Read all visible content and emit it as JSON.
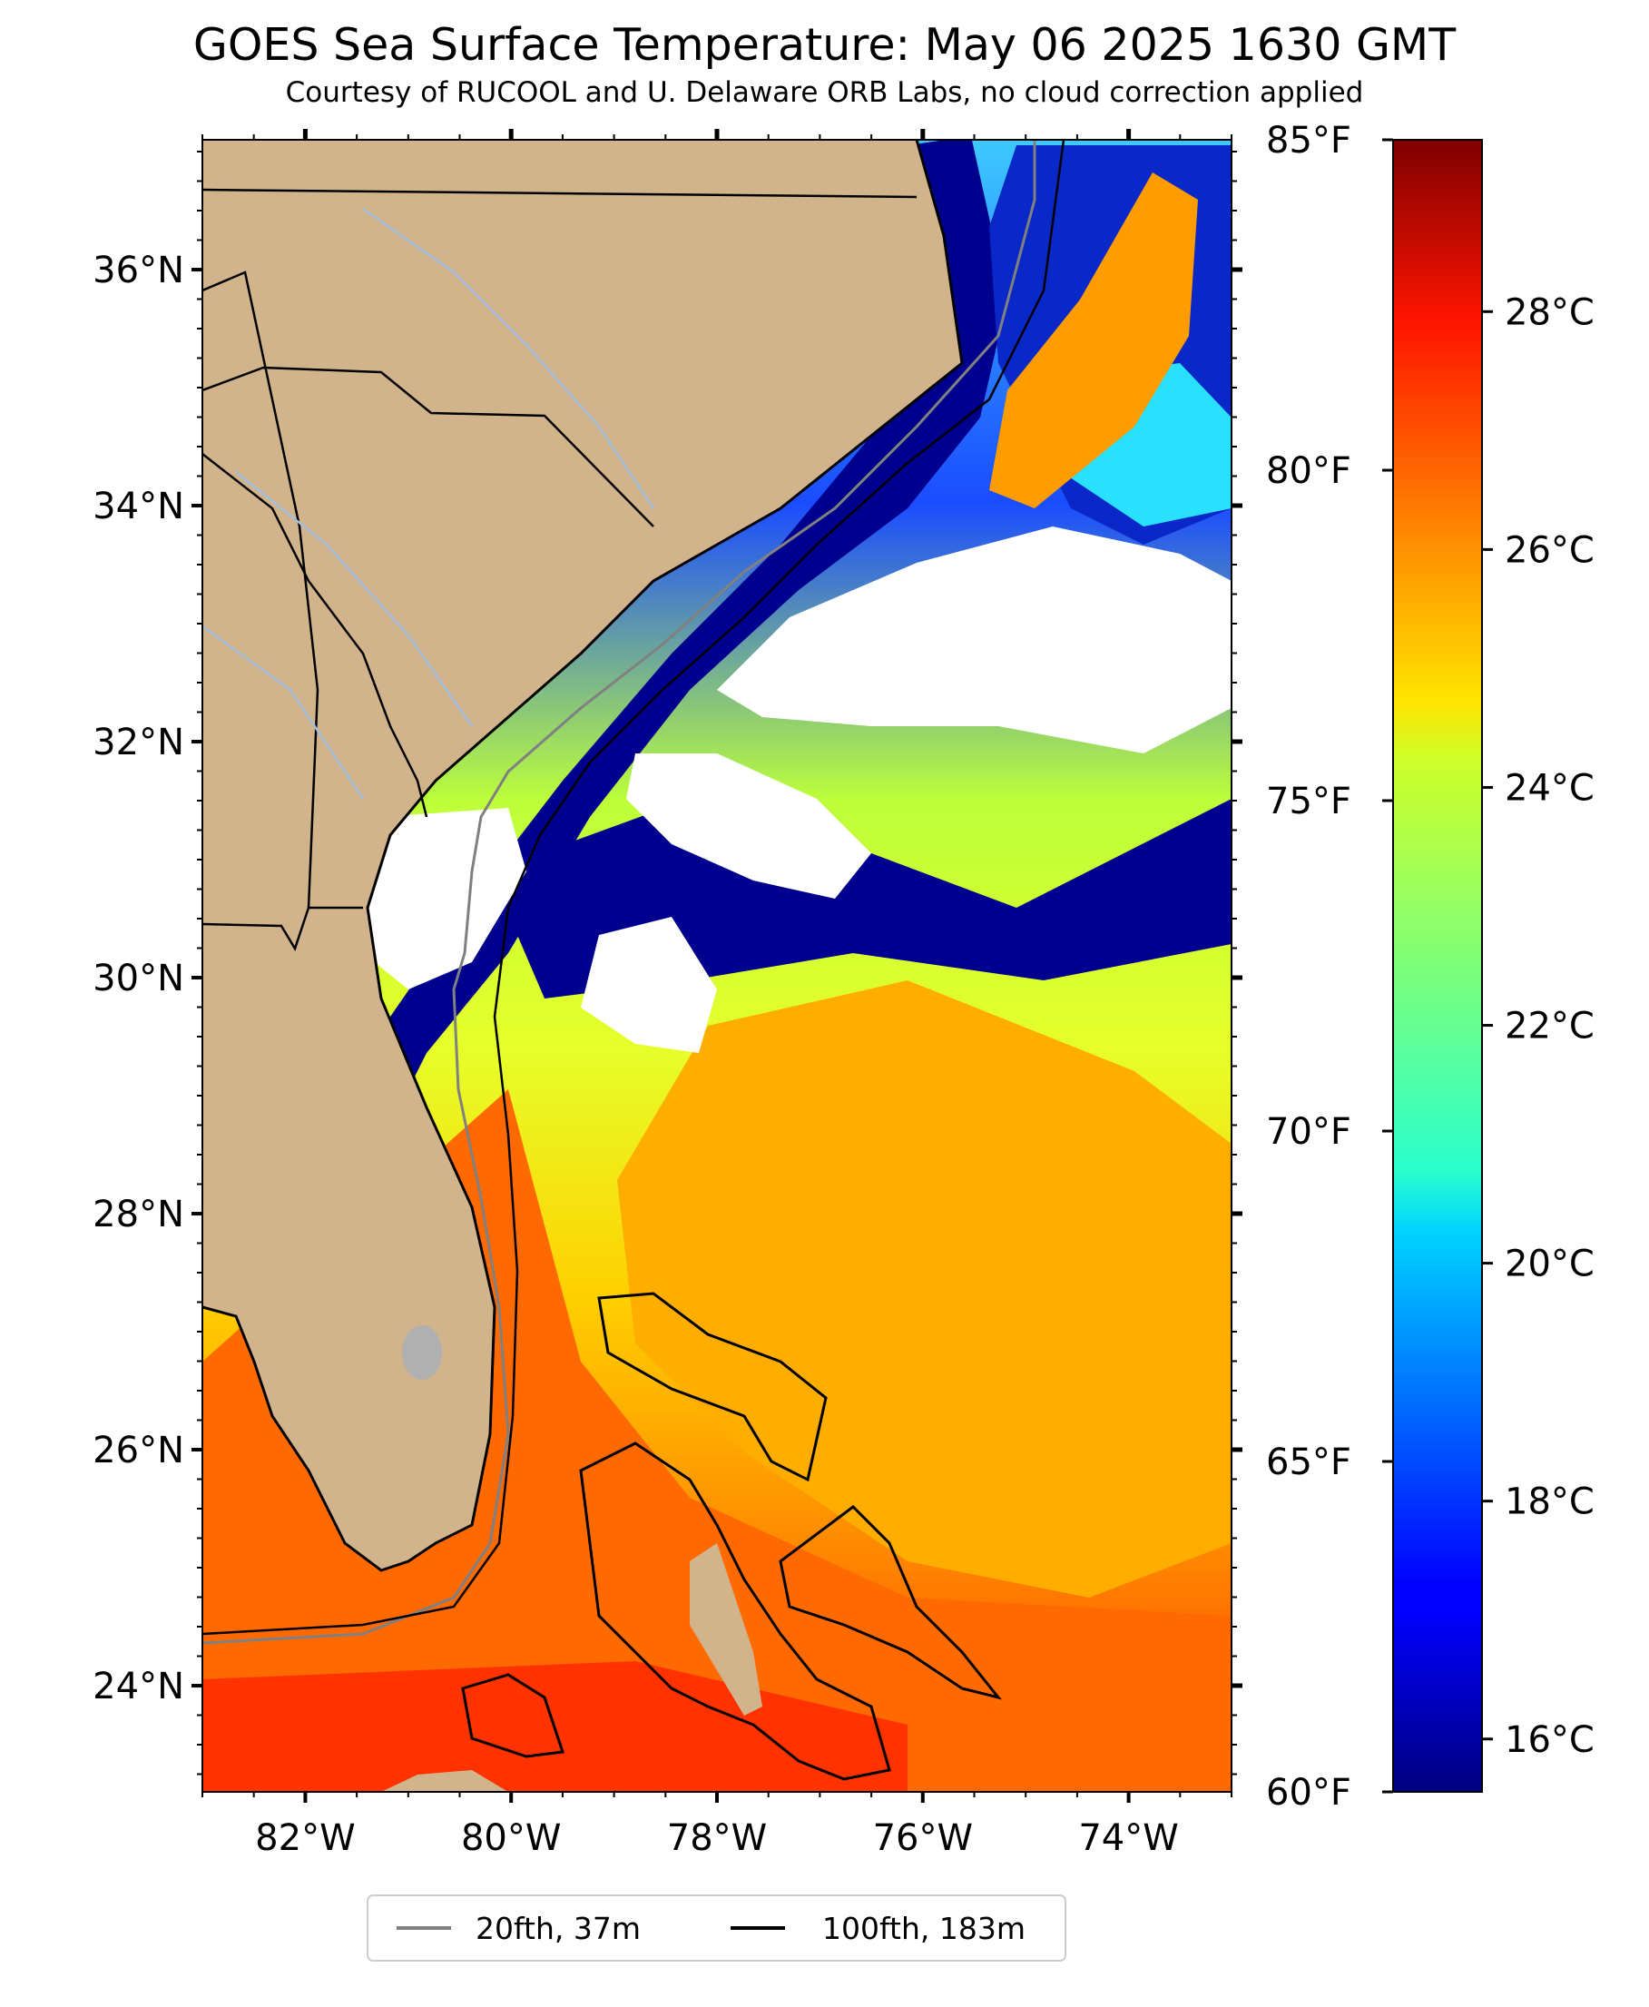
{
  "title": "GOES Sea Surface Temperature: May 06 2025 1630 GMT",
  "subtitle": "Courtesy of RUCOOL and U. Delaware ORB Labs, no cloud correction applied",
  "map": {
    "lat_range": [
      23.1,
      37.1
    ],
    "lon_range": [
      -83.0,
      -73.0
    ],
    "lat_ticks": [
      {
        "value": 24,
        "label": "24°N"
      },
      {
        "value": 26,
        "label": "26°N"
      },
      {
        "value": 28,
        "label": "28°N"
      },
      {
        "value": 30,
        "label": "30°N"
      },
      {
        "value": 32,
        "label": "32°N"
      },
      {
        "value": 34,
        "label": "34°N"
      },
      {
        "value": 36,
        "label": "36°N"
      }
    ],
    "lon_ticks": [
      {
        "value": -82,
        "label": "82°W"
      },
      {
        "value": -80,
        "label": "80°W"
      },
      {
        "value": -78,
        "label": "78°W"
      },
      {
        "value": -76,
        "label": "76°W"
      },
      {
        "value": -74,
        "label": "74°W"
      }
    ],
    "colors": {
      "land": "#d2b48c",
      "cloud": "#ffffff",
      "coast": "#000000",
      "state_border": "#000000",
      "rivers": "#a5bfdd",
      "inland_water": "#b0b0b0"
    }
  },
  "colorbar": {
    "colormap": "jet",
    "fahrenheit_range": [
      60,
      85
    ],
    "fahrenheit_ticks": [
      {
        "value": 60,
        "label": "60°F"
      },
      {
        "value": 65,
        "label": "65°F"
      },
      {
        "value": 70,
        "label": "70°F"
      },
      {
        "value": 75,
        "label": "75°F"
      },
      {
        "value": 80,
        "label": "80°F"
      },
      {
        "value": 85,
        "label": "85°F"
      }
    ],
    "celsius_ticks": [
      {
        "value": 16,
        "label": "16°C"
      },
      {
        "value": 18,
        "label": "18°C"
      },
      {
        "value": 20,
        "label": "20°C"
      },
      {
        "value": 22,
        "label": "22°C"
      },
      {
        "value": 24,
        "label": "24°C"
      },
      {
        "value": 26,
        "label": "26°C"
      },
      {
        "value": 28,
        "label": "28°C"
      }
    ]
  },
  "legend": [
    {
      "label": "20fth, 37m",
      "color": "#808080"
    },
    {
      "label": "100fth, 183m",
      "color": "#000000"
    }
  ]
}
